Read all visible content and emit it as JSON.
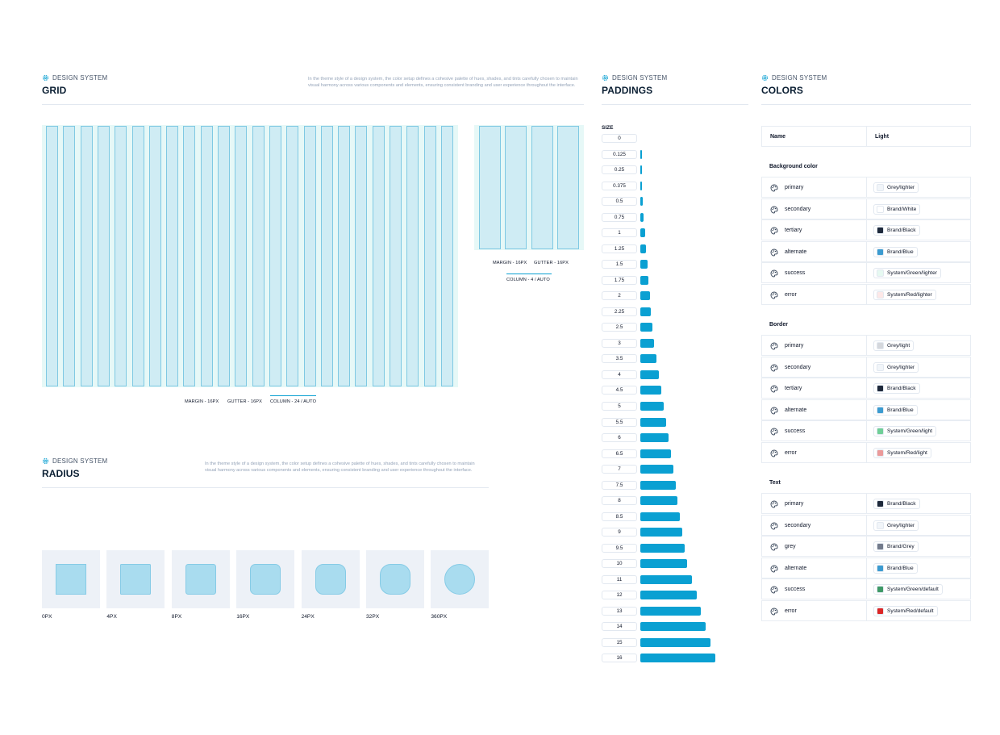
{
  "grid": {
    "eyebrow": "DESIGN SYSTEM",
    "title": "GRID",
    "description": "In the theme style of a design system, the color setup defines a cohesive palette of hues, shades, and tints carefully chosen to maintain visual harmony across various components and elements, ensuring consistent branding and user experience throughout the interface.",
    "desktop_labels": [
      "MARGIN - 16PX",
      "GUTTER - 16PX",
      "COLUMN - 24 / AUTO"
    ],
    "mobile_labels": [
      "MARGIN - 16PX",
      "GUTTER - 16PX",
      "COLUMN - 4 / AUTO"
    ]
  },
  "radius": {
    "eyebrow": "DESIGN SYSTEM",
    "title": "RADIUS",
    "description": "In the theme style of a design system, the color setup defines a cohesive palette of hues, shades, and tints carefully chosen to maintain visual harmony across various components and elements, ensuring consistent branding and user experience throughout the interface.",
    "items": [
      {
        "label": "0PX",
        "value": 0
      },
      {
        "label": "4PX",
        "value": 4
      },
      {
        "label": "8PX",
        "value": 8
      },
      {
        "label": "16PX",
        "value": 16
      },
      {
        "label": "24PX",
        "value": 24
      },
      {
        "label": "32PX",
        "value": 32
      },
      {
        "label": "360PX",
        "value": 360
      }
    ]
  },
  "paddings": {
    "eyebrow": "DESIGN SYSTEM",
    "title": "PADDINGS",
    "size_label": "SIZE",
    "items": [
      "0",
      "0.125",
      "0.25",
      "0.375",
      "0.5",
      "0.75",
      "1",
      "1.25",
      "1.5",
      "1.75",
      "2",
      "2.25",
      "2.5",
      "3",
      "3.5",
      "4",
      "4.5",
      "5",
      "5.5",
      "6",
      "6.5",
      "7",
      "7.5",
      "8",
      "8.5",
      "9",
      "9.5",
      "10",
      "11",
      "12",
      "13",
      "14",
      "15",
      "16"
    ]
  },
  "colors": {
    "eyebrow": "DESIGN SYSTEM",
    "title": "COLORS",
    "headers": {
      "name": "Name",
      "light": "Light"
    },
    "groups": [
      {
        "label": "Background color",
        "rows": [
          {
            "name": "primary",
            "token": "Grey/lighter",
            "swatch": "#f1f5f9"
          },
          {
            "name": "secondary",
            "token": "Brand/White",
            "swatch": "#ffffff"
          },
          {
            "name": "tertiary",
            "token": "Brand/Black",
            "swatch": "#1e293b"
          },
          {
            "name": "alternate",
            "token": "Brand/Blue",
            "swatch": "#3b9bd0"
          },
          {
            "name": "success",
            "token": "System/Green/lighter",
            "swatch": "#e6f9f1"
          },
          {
            "name": "error",
            "token": "System/Red/lighter",
            "swatch": "#fde8e8"
          }
        ]
      },
      {
        "label": "Border",
        "rows": [
          {
            "name": "primary",
            "token": "Grey/light",
            "swatch": "#d4d7dc"
          },
          {
            "name": "secondary",
            "token": "Grey/lighter",
            "swatch": "#f1f5f9"
          },
          {
            "name": "tertiary",
            "token": "Brand/Black",
            "swatch": "#1e293b"
          },
          {
            "name": "alternate",
            "token": "Brand/Blue",
            "swatch": "#3b9bd0"
          },
          {
            "name": "success",
            "token": "System/Green/light",
            "swatch": "#6fcf97"
          },
          {
            "name": "error",
            "token": "System/Red/light",
            "swatch": "#eb9a9a"
          }
        ]
      },
      {
        "label": "Text",
        "rows": [
          {
            "name": "primary",
            "token": "Brand/Black",
            "swatch": "#1e293b"
          },
          {
            "name": "secondary",
            "token": "Grey/lighter",
            "swatch": "#f1f5f9"
          },
          {
            "name": "grey",
            "token": "Brand/Grey",
            "swatch": "#737b8c"
          },
          {
            "name": "alternate",
            "token": "Brand/Blue",
            "swatch": "#3b9bd0"
          },
          {
            "name": "success",
            "token": "System/Green/default",
            "swatch": "#3f9a67"
          },
          {
            "name": "error",
            "token": "System/Red/default",
            "swatch": "#dc2626"
          }
        ]
      }
    ]
  },
  "theme": {
    "accent": "#0aa0d2",
    "eyebrow_icon": "gear-icon"
  }
}
